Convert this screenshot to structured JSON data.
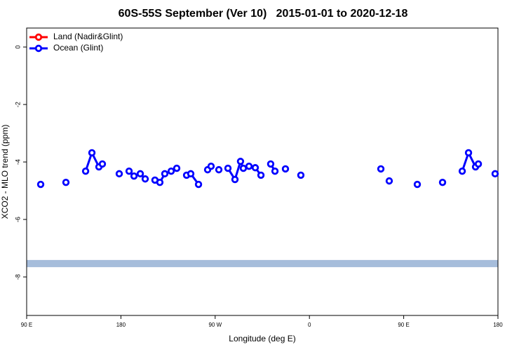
{
  "chart_data": {
    "type": "line",
    "title": "60S-55S September (Ver 10)   2015-01-01 to 2020-12-18",
    "xlabel": "Longitude (deg E)",
    "ylabel": "XCO2 - MLO trend (ppm)",
    "xlim": [
      90,
      540
    ],
    "xticks": [
      {
        "value": 90,
        "label": "90 E"
      },
      {
        "value": 180,
        "label": "180"
      },
      {
        "value": 270,
        "label": "90 W"
      },
      {
        "value": 360,
        "label": "0"
      },
      {
        "value": 450,
        "label": "90 E"
      },
      {
        "value": 540,
        "label": "180"
      }
    ],
    "ylim": [
      -9.34,
      0.66
    ],
    "yticks": [
      0,
      -2,
      -4,
      -6,
      -8
    ],
    "band": {
      "range": [
        -7.66,
        -7.41
      ],
      "color": "#a6bddb"
    },
    "legend": "upper left",
    "x": [
      103.4,
      null,
      127.5,
      null,
      146.3,
      152.3,
      159.0,
      162.3,
      null,
      178.4,
      null,
      187.8,
      192.5,
      198.5,
      203.2,
      null,
      212.5,
      217.2,
      221.9,
      228.0,
      233.3,
      null,
      242.7,
      246.7,
      254.1,
      null,
      262.8,
      266.1,
      null,
      273.5,
      null,
      282.2,
      288.9,
      294.2,
      296.9,
      302.3,
      308.3,
      313.7,
      null,
      323.0,
      327.1,
      null,
      337.1,
      null,
      351.8,
      null,
      428.2,
      null,
      436.2,
      null,
      463.0,
      null,
      487.1,
      null,
      505.9,
      511.9,
      518.6,
      521.3,
      null,
      537.3
    ],
    "series": [
      {
        "name": "Land (Nadir&Glint)",
        "color": "#ff0000",
        "values": [
          null,
          null,
          null,
          null,
          null,
          null,
          null,
          null,
          null,
          null,
          null,
          null,
          null,
          null,
          null,
          null,
          null,
          null,
          null,
          null,
          null,
          null,
          null,
          null,
          null,
          null,
          null,
          null,
          null,
          null,
          null,
          null,
          null,
          null,
          null,
          null,
          null,
          null,
          null,
          null,
          null,
          null,
          null,
          null,
          null,
          null,
          null,
          null,
          null,
          null,
          null,
          null,
          null,
          null,
          null,
          null,
          null,
          null,
          null,
          null
        ]
      },
      {
        "name": "Ocean (Glint)",
        "color": "#0000ff",
        "values": [
          -4.78,
          null,
          -4.71,
          null,
          -4.32,
          -3.68,
          -4.17,
          -4.07,
          null,
          -4.41,
          null,
          -4.32,
          -4.49,
          -4.41,
          -4.59,
          null,
          -4.63,
          -4.71,
          -4.41,
          -4.32,
          -4.22,
          null,
          -4.46,
          -4.41,
          -4.78,
          null,
          -4.27,
          -4.15,
          null,
          -4.27,
          null,
          -4.22,
          -4.61,
          -3.98,
          -4.22,
          -4.15,
          -4.2,
          -4.46,
          null,
          -4.07,
          -4.32,
          null,
          -4.24,
          null,
          -4.46,
          null,
          -4.24,
          null,
          -4.66,
          null,
          -4.78,
          null,
          -4.71,
          null,
          -4.32,
          -3.68,
          -4.17,
          -4.07,
          null,
          -4.41
        ]
      }
    ]
  }
}
